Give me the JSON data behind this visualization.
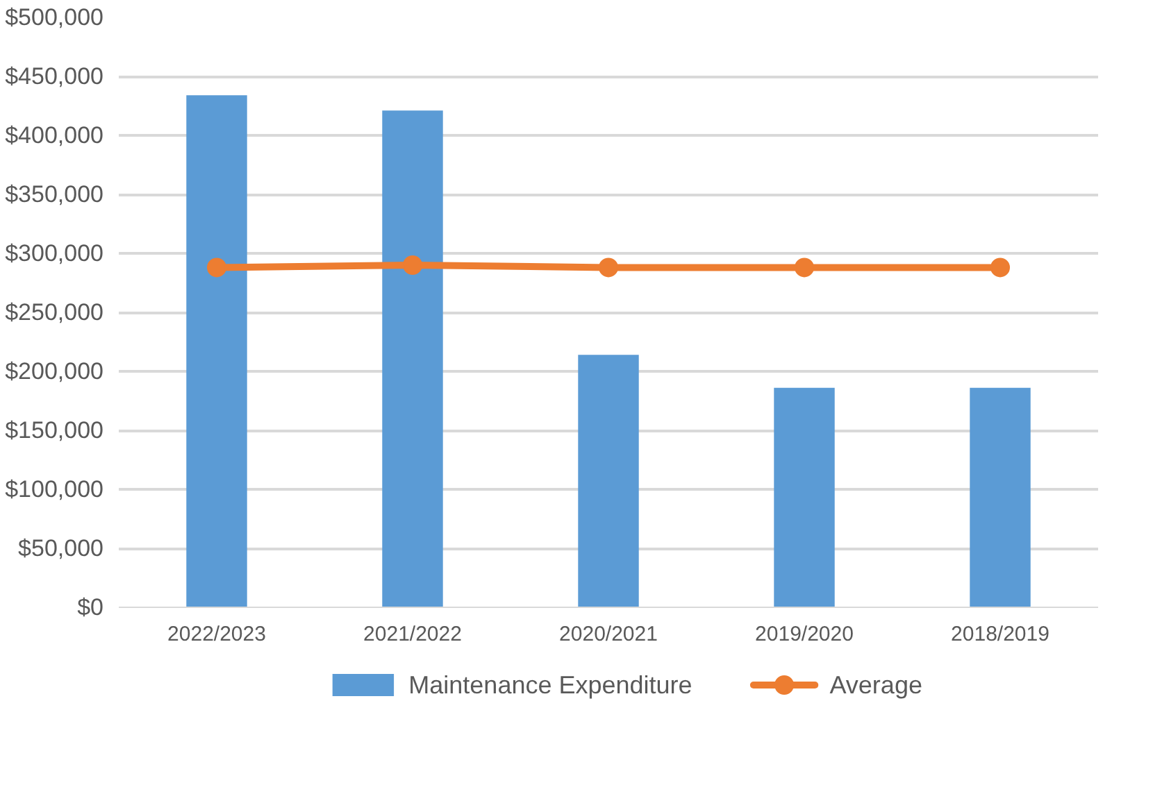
{
  "chart_data": {
    "type": "bar",
    "categories": [
      "2022/2023",
      "2021/2022",
      "2020/2021",
      "2019/2020",
      "2018/2019"
    ],
    "series": [
      {
        "name": "Maintenance Expenditure",
        "color": "#5b9bd5",
        "values": [
          434000,
          421000,
          214000,
          186000,
          186000
        ]
      },
      {
        "name": "Average",
        "type": "line",
        "color": "#ed7d31",
        "marker": "circle",
        "values": [
          288000,
          290000,
          288000,
          288000,
          288000
        ]
      }
    ],
    "ylim": [
      0,
      500000
    ],
    "yticks": [
      {
        "value": 0,
        "label": "$0"
      },
      {
        "value": 50000,
        "label": "$50,000"
      },
      {
        "value": 100000,
        "label": "$100,000"
      },
      {
        "value": 150000,
        "label": "$150,000"
      },
      {
        "value": 200000,
        "label": "$200,000"
      },
      {
        "value": 250000,
        "label": "$250,000"
      },
      {
        "value": 300000,
        "label": "$300,000"
      },
      {
        "value": 350000,
        "label": "$350,000"
      },
      {
        "value": 400000,
        "label": "$400,000"
      },
      {
        "value": 450000,
        "label": "$450,000"
      },
      {
        "value": 500000,
        "label": "$500,000"
      }
    ],
    "grid": "y",
    "legend": "bottom"
  }
}
